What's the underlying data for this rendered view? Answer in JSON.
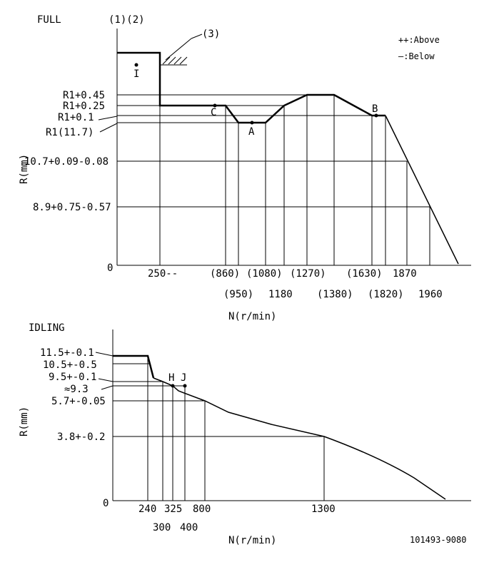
{
  "full": {
    "title": "FULL",
    "top_marks": "(1)(2)",
    "note3": "(3)",
    "legend": {
      "above": "++:Above",
      "below": "—:Below"
    },
    "y_axis_label": "R(mm)",
    "x_axis_label": "N(r/min)",
    "y_ticks": [
      "R1+0.45",
      "R1+0.25",
      "R1+0.1",
      "R1(11.7)",
      "10.7+0.09-0.08",
      "8.9+0.75-0.57",
      "0"
    ],
    "x_ticks_row1": [
      "250--",
      "(860)",
      "(1080)",
      "(1270)",
      "(1630)",
      "1870"
    ],
    "x_ticks_row2": [
      "(950)",
      "1180",
      "(1380)",
      "(1820)",
      "1960"
    ],
    "points": [
      "I",
      "C",
      "A",
      "B"
    ]
  },
  "idling": {
    "title": "IDLING",
    "y_axis_label": "R(mm)",
    "x_axis_label": "N(r/min)",
    "y_ticks": [
      "11.5+-0.1",
      "10.5+-0.5",
      "9.5+-0.1",
      "≈9.3",
      "5.7+-0.05",
      "3.8+-0.2",
      "0"
    ],
    "x_ticks_row1": [
      "240",
      "325",
      "800",
      "1300"
    ],
    "x_ticks_row2": [
      "300",
      "400"
    ],
    "points": [
      "H",
      "J"
    ]
  },
  "doc_number": "101493-9080"
}
